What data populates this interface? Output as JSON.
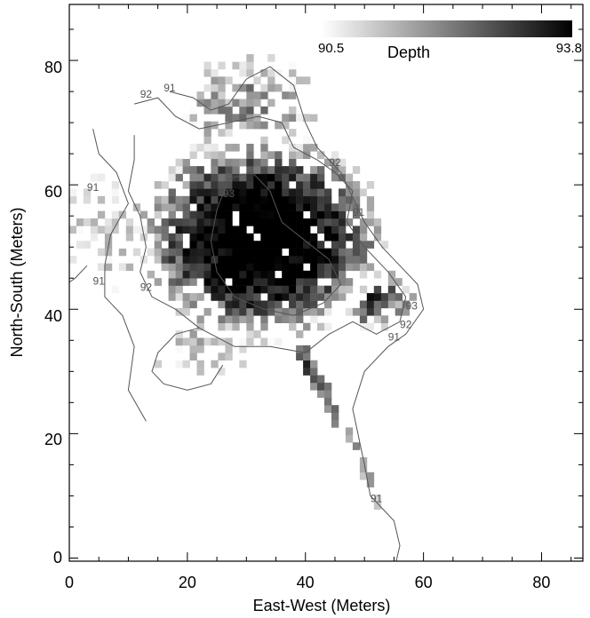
{
  "chart_data": {
    "type": "heatmap",
    "xlabel": "East-West (Meters)",
    "ylabel": "North-South (Meters)",
    "xlim": [
      0,
      87
    ],
    "ylim": [
      -0.5,
      89
    ],
    "xticks": [
      0,
      20,
      40,
      60,
      80
    ],
    "yticks": [
      0,
      20,
      40,
      60,
      80
    ],
    "xtick_labels": [
      "0",
      "20",
      "40",
      "60",
      "80"
    ],
    "ytick_labels": [
      "0",
      "20",
      "40",
      "60",
      "80"
    ],
    "colorbar": {
      "title": "Depth",
      "min": 90.5,
      "max": 93.8,
      "min_label": "90.5",
      "max_label": "93.8",
      "color_low": "#ffffff",
      "color_high": "#000000"
    },
    "cell_size": 1.2,
    "heatmap": {
      "core_center": [
        32,
        50
      ],
      "peak_depth": 93.8,
      "edge_depth": 90.5
    },
    "contours": [
      {
        "level": 91,
        "label": "91"
      },
      {
        "level": 92,
        "label": "92"
      },
      {
        "level": 93,
        "label": "93"
      }
    ],
    "contour_labels": [
      {
        "text": "92",
        "x": 13,
        "y": 74
      },
      {
        "text": "91",
        "x": 17,
        "y": 75
      },
      {
        "text": "92",
        "x": 45,
        "y": 63
      },
      {
        "text": "91",
        "x": 4,
        "y": 59
      },
      {
        "text": "93",
        "x": 27,
        "y": 58
      },
      {
        "text": "91",
        "x": 49,
        "y": 55
      },
      {
        "text": "91",
        "x": 5,
        "y": 44
      },
      {
        "text": "92",
        "x": 13,
        "y": 43
      },
      {
        "text": "93",
        "x": 58,
        "y": 40
      },
      {
        "text": "92",
        "x": 57,
        "y": 37
      },
      {
        "text": "91",
        "x": 55,
        "y": 35
      },
      {
        "text": "91",
        "x": 52,
        "y": 9
      }
    ]
  }
}
